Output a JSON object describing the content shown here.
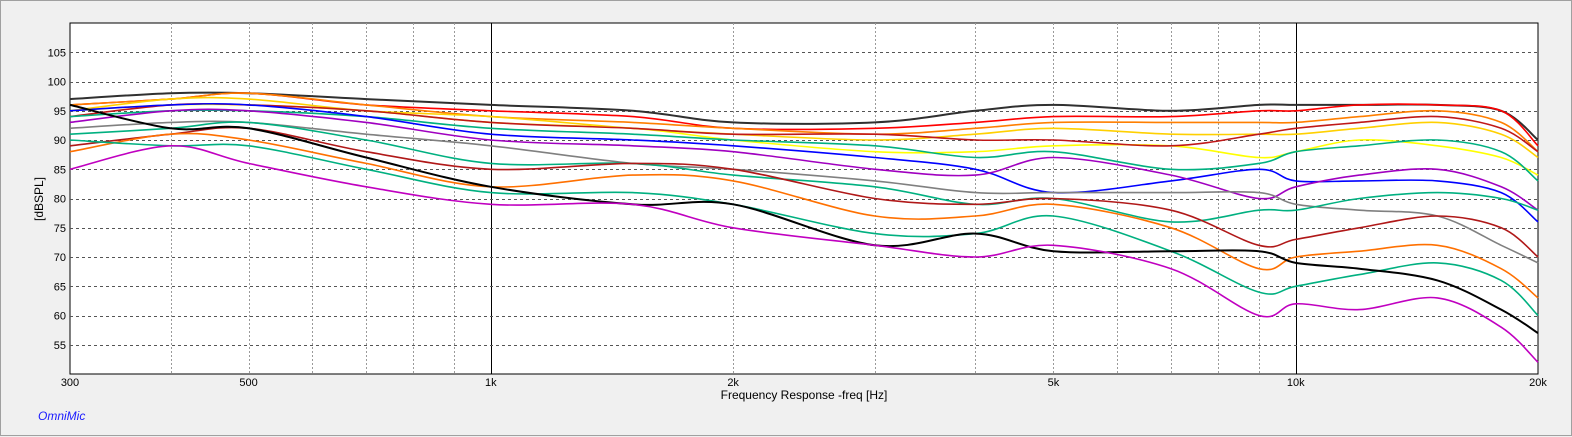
{
  "chart_data": {
    "type": "line",
    "xlabel": "Frequency Response -freq [Hz]",
    "ylabel": "[dBSPL]",
    "x_scale": "log",
    "xlim": [
      300,
      20000
    ],
    "ylim": [
      50,
      110
    ],
    "grid": true,
    "xticks": [
      {
        "value": 300,
        "label": "300"
      },
      {
        "value": 500,
        "label": "500"
      },
      {
        "value": 1000,
        "label": "1k"
      },
      {
        "value": 2000,
        "label": "2k"
      },
      {
        "value": 5000,
        "label": "5k"
      },
      {
        "value": 10000,
        "label": "10k"
      },
      {
        "value": 20000,
        "label": "20k"
      }
    ],
    "yticks": [
      55,
      60,
      65,
      70,
      75,
      80,
      85,
      90,
      95,
      100,
      105
    ],
    "x": [
      300,
      400,
      500,
      700,
      1000,
      1500,
      2000,
      3000,
      4000,
      5000,
      7000,
      9000,
      10000,
      12000,
      15000,
      18000,
      20000
    ],
    "series": [
      {
        "color": "#303030",
        "values": [
          97,
          98,
          98,
          97,
          96,
          95,
          93,
          93,
          95,
          96,
          95,
          96,
          96,
          96,
          96,
          95,
          90
        ]
      },
      {
        "color": "#ff0000",
        "values": [
          96,
          97,
          98,
          96,
          95,
          94,
          92,
          92,
          93,
          94,
          94,
          95,
          95,
          96,
          96,
          95,
          89
        ]
      },
      {
        "color": "#ff7f00",
        "values": [
          96,
          97,
          98,
          96,
          94,
          93,
          92,
          91,
          92,
          93,
          93,
          93,
          93,
          94,
          95,
          93,
          88
        ]
      },
      {
        "color": "#ffd000",
        "values": [
          95,
          97,
          97,
          95,
          94,
          92,
          91,
          90,
          91,
          92,
          91,
          91,
          91,
          92,
          93,
          91,
          87
        ]
      },
      {
        "color": "#ffff00",
        "values": [
          95,
          96,
          96,
          95,
          93,
          92,
          90,
          88,
          88,
          89,
          89,
          87,
          88,
          90,
          89,
          87,
          84
        ]
      },
      {
        "color": "#c01818",
        "values": [
          94,
          96,
          96,
          95,
          93,
          92,
          91,
          91,
          90,
          90,
          89,
          91,
          92,
          93,
          94,
          92,
          88
        ]
      },
      {
        "color": "#00b080",
        "values": [
          94,
          95,
          95,
          94,
          92,
          91,
          90,
          89,
          87,
          88,
          85,
          86,
          88,
          89,
          90,
          88,
          83
        ]
      },
      {
        "color": "#0000ff",
        "values": [
          95,
          96,
          96,
          94,
          91,
          90,
          89,
          87,
          85,
          81,
          83,
          85,
          83,
          83,
          83,
          81,
          76
        ]
      },
      {
        "color": "#a000c0",
        "values": [
          93,
          95,
          95,
          93,
          90,
          89,
          88,
          85,
          84,
          87,
          84,
          80,
          82,
          84,
          85,
          82,
          78
        ]
      },
      {
        "color": "#808080",
        "values": [
          92,
          93,
          93,
          91,
          89,
          86,
          85,
          83,
          81,
          81,
          81,
          81,
          79,
          78,
          77,
          72,
          69
        ]
      },
      {
        "color": "#00b080",
        "values": [
          91,
          92,
          93,
          90,
          86,
          86,
          84,
          82,
          79,
          80,
          76,
          78,
          78,
          80,
          81,
          80,
          78
        ]
      },
      {
        "color": "#b01818",
        "values": [
          89,
          91,
          92,
          88,
          85,
          86,
          85,
          80,
          79,
          80,
          78,
          72,
          73,
          75,
          77,
          75,
          70
        ]
      },
      {
        "color": "#ff7000",
        "values": [
          88,
          91,
          90,
          86,
          82,
          84,
          83,
          77,
          77,
          79,
          75,
          68,
          70,
          71,
          72,
          68,
          63
        ]
      },
      {
        "color": "#00b080",
        "values": [
          90,
          89,
          89,
          85,
          81,
          81,
          79,
          74,
          74,
          77,
          71,
          64,
          65,
          67,
          69,
          66,
          60
        ]
      },
      {
        "color": "#000000",
        "values": [
          96,
          92,
          92,
          87,
          82,
          79,
          79,
          72,
          74,
          71,
          71,
          71,
          69,
          68,
          66,
          61,
          57
        ]
      },
      {
        "color": "#c000c0",
        "values": [
          85,
          89,
          86,
          82,
          79,
          79,
          75,
          72,
          70,
          72,
          68,
          60,
          62,
          61,
          63,
          58,
          52
        ]
      }
    ]
  },
  "footer": {
    "brand": "OmniMic"
  }
}
